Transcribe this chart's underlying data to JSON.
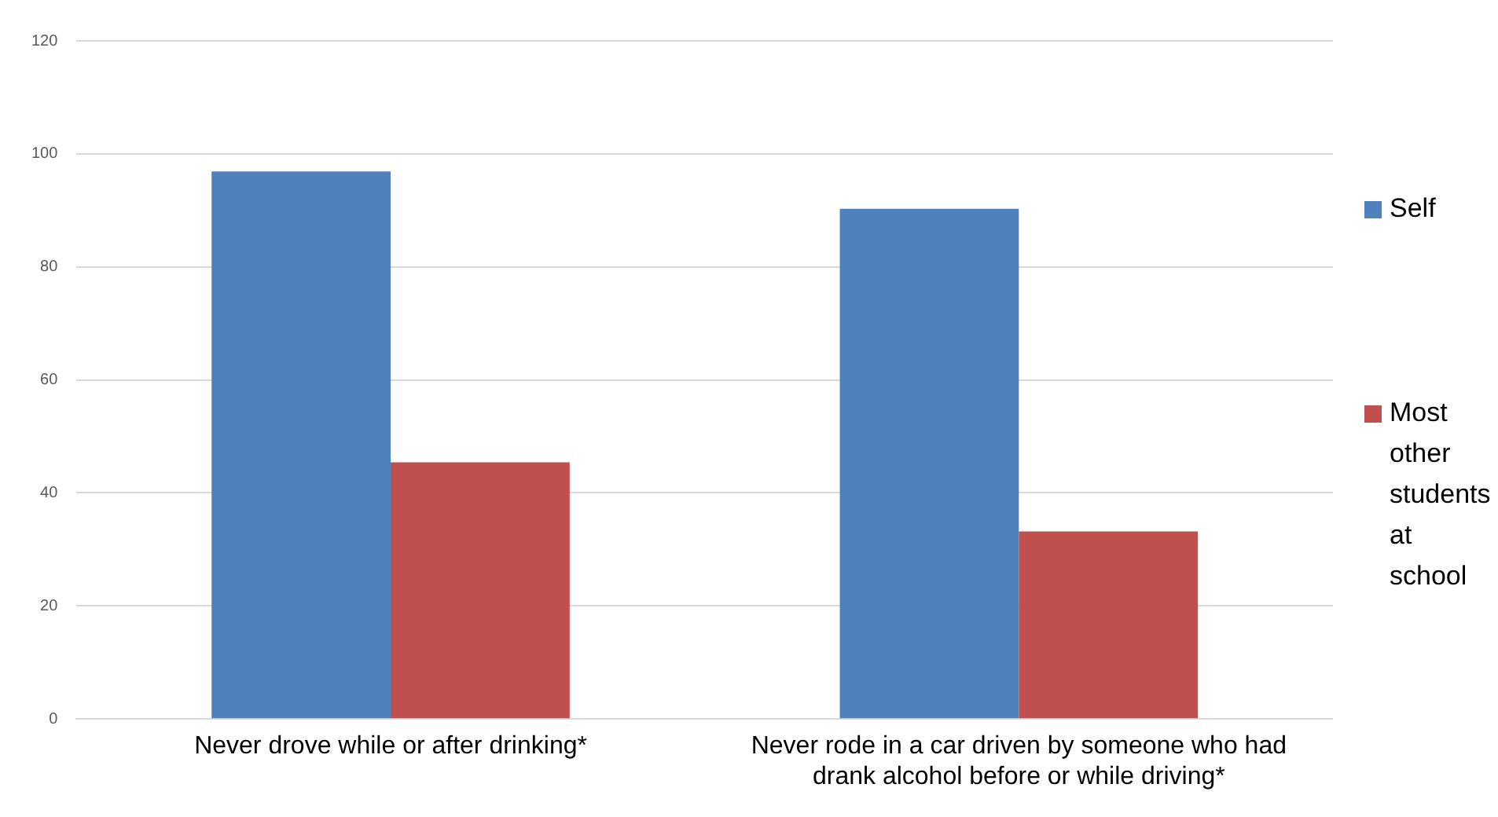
{
  "chart_data": {
    "type": "bar",
    "categories": [
      "Never drove while or after drinking*",
      "Never rode in a car driven by someone who had drank alcohol before or while driving*"
    ],
    "series": [
      {
        "name": "Self",
        "color": "#4f81bd",
        "values": [
          96.9,
          90.3
        ]
      },
      {
        "name": "Most other students at school",
        "color": "#c0504d",
        "values": [
          45.4,
          33.2
        ]
      }
    ],
    "ylim": [
      0,
      120
    ],
    "yticks": [
      0,
      20,
      40,
      60,
      80,
      100,
      120
    ],
    "grid": "y",
    "legend": "right"
  }
}
